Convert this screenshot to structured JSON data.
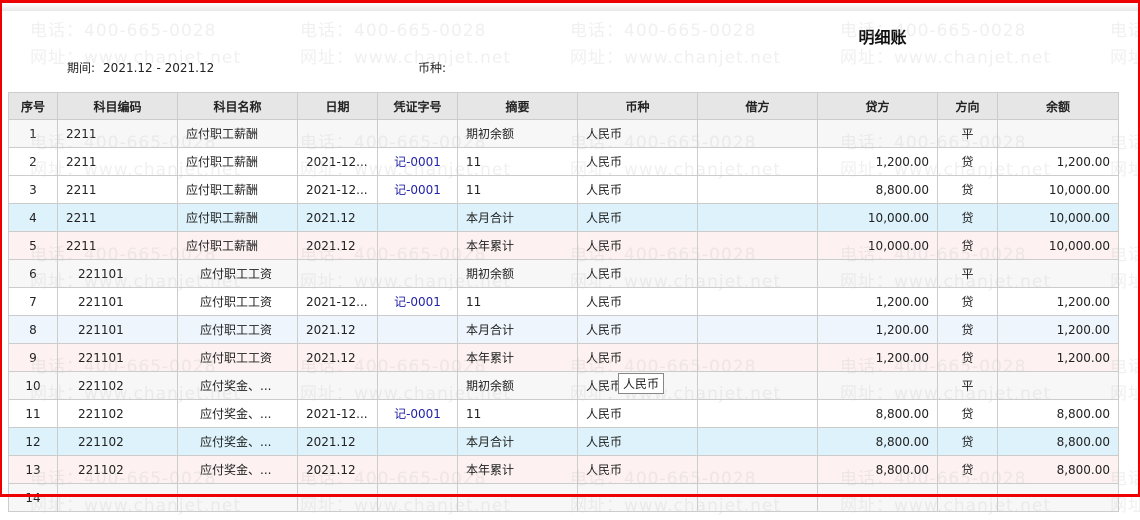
{
  "title": "明细账",
  "period_label": "期间:",
  "period_value": "2021.12 - 2021.12",
  "currency_label": "币种:",
  "watermark": {
    "phone": "电话：400-665-0028",
    "site": "网址：www.chanjet.net"
  },
  "tooltip": "人民币",
  "columns": [
    "序号",
    "科目编码",
    "科目名称",
    "日期",
    "凭证字号",
    "摘要",
    "币种",
    "借方",
    "贷方",
    "方向",
    "余额"
  ],
  "rows": [
    [
      "1",
      "2211",
      "应付职工薪酬",
      "",
      "",
      "期初余额",
      "人民币",
      "",
      "",
      "平",
      ""
    ],
    [
      "2",
      "2211",
      "应付职工薪酬",
      "2021-12...",
      "记-0001",
      "11",
      "人民币",
      "",
      "1,200.00",
      "贷",
      "1,200.00"
    ],
    [
      "3",
      "2211",
      "应付职工薪酬",
      "2021-12...",
      "记-0001",
      "11",
      "人民币",
      "",
      "8,800.00",
      "贷",
      "10,000.00"
    ],
    [
      "4",
      "2211",
      "应付职工薪酬",
      "2021.12",
      "",
      "本月合计",
      "人民币",
      "",
      "10,000.00",
      "贷",
      "10,000.00"
    ],
    [
      "5",
      "2211",
      "应付职工薪酬",
      "2021.12",
      "",
      "本年累计",
      "人民币",
      "",
      "10,000.00",
      "贷",
      "10,000.00"
    ],
    [
      "6",
      "221101",
      "应付职工工资",
      "",
      "",
      "期初余额",
      "人民币",
      "",
      "",
      "平",
      ""
    ],
    [
      "7",
      "221101",
      "应付职工工资",
      "2021-12...",
      "记-0001",
      "11",
      "人民币",
      "",
      "1,200.00",
      "贷",
      "1,200.00"
    ],
    [
      "8",
      "221101",
      "应付职工工资",
      "2021.12",
      "",
      "本月合计",
      "人民币",
      "",
      "1,200.00",
      "贷",
      "1,200.00"
    ],
    [
      "9",
      "221101",
      "应付职工工资",
      "2021.12",
      "",
      "本年累计",
      "人民币",
      "",
      "1,200.00",
      "贷",
      "1,200.00"
    ],
    [
      "10",
      "221102",
      "应付奖金、...",
      "",
      "",
      "期初余额",
      "人民币",
      "",
      "",
      "平",
      ""
    ],
    [
      "11",
      "221102",
      "应付奖金、...",
      "2021-12...",
      "记-0001",
      "11",
      "人民币",
      "",
      "8,800.00",
      "贷",
      "8,800.00"
    ],
    [
      "12",
      "221102",
      "应付奖金、...",
      "2021.12",
      "",
      "本月合计",
      "人民币",
      "",
      "8,800.00",
      "贷",
      "8,800.00"
    ],
    [
      "13",
      "221102",
      "应付奖金、...",
      "2021.12",
      "",
      "本年累计",
      "人民币",
      "",
      "8,800.00",
      "贷",
      "8,800.00"
    ],
    [
      "14",
      "",
      "",
      "",
      "",
      "",
      "",
      "",
      "",
      "",
      ""
    ]
  ]
}
